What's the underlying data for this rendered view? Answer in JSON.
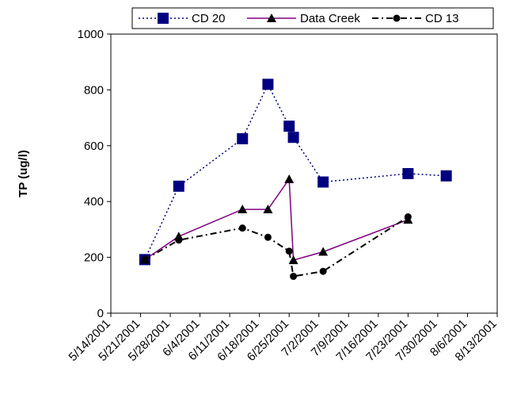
{
  "chart_data": {
    "type": "line",
    "title": "",
    "xlabel": "",
    "ylabel": "TP (ug/l)",
    "ylim": [
      0,
      1000
    ],
    "yticks": [
      "0",
      "200",
      "400",
      "600",
      "800",
      "1000"
    ],
    "xlim": [
      "2001-05-14",
      "2001-08-13"
    ],
    "xticks": [
      "5/14/2001",
      "5/21/2001",
      "5/28/2001",
      "6/4/2001",
      "6/11/2001",
      "6/18/2001",
      "6/25/2001",
      "7/2/2001",
      "7/9/2001",
      "7/16/2001",
      "7/23/2001",
      "7/30/2001",
      "8/6/2001",
      "8/13/2001"
    ],
    "grid": false,
    "legend_position": "top",
    "series": [
      {
        "name": "CD 20",
        "color": "#000080",
        "line_style": "dotted",
        "marker": "square",
        "points": [
          {
            "x": "2001-05-22",
            "y": 192
          },
          {
            "x": "2001-05-30",
            "y": 455
          },
          {
            "x": "2001-06-14",
            "y": 625
          },
          {
            "x": "2001-06-20",
            "y": 820
          },
          {
            "x": "2001-06-25",
            "y": 670
          },
          {
            "x": "2001-06-26",
            "y": 630
          },
          {
            "x": "2001-07-03",
            "y": 470
          },
          {
            "x": "2001-07-23",
            "y": 500
          },
          {
            "x": "2001-08-01",
            "y": 492
          }
        ]
      },
      {
        "name": "Data Creek",
        "color": "#800080",
        "marker_color": "#000000",
        "line_style": "solid",
        "marker": "triangle",
        "points": [
          {
            "x": "2001-05-22",
            "y": 192
          },
          {
            "x": "2001-05-30",
            "y": 275
          },
          {
            "x": "2001-06-14",
            "y": 372
          },
          {
            "x": "2001-06-20",
            "y": 372
          },
          {
            "x": "2001-06-25",
            "y": 480
          },
          {
            "x": "2001-06-26",
            "y": 190
          },
          {
            "x": "2001-07-03",
            "y": 220
          },
          {
            "x": "2001-07-23",
            "y": 335
          }
        ]
      },
      {
        "name": "CD 13",
        "color": "#000000",
        "line_style": "dashdot",
        "marker": "circle",
        "points": [
          {
            "x": "2001-05-22",
            "y": 192
          },
          {
            "x": "2001-05-30",
            "y": 262
          },
          {
            "x": "2001-06-14",
            "y": 305
          },
          {
            "x": "2001-06-20",
            "y": 272
          },
          {
            "x": "2001-06-25",
            "y": 222
          },
          {
            "x": "2001-06-26",
            "y": 132
          },
          {
            "x": "2001-07-03",
            "y": 150
          },
          {
            "x": "2001-07-23",
            "y": 345
          }
        ]
      }
    ]
  }
}
